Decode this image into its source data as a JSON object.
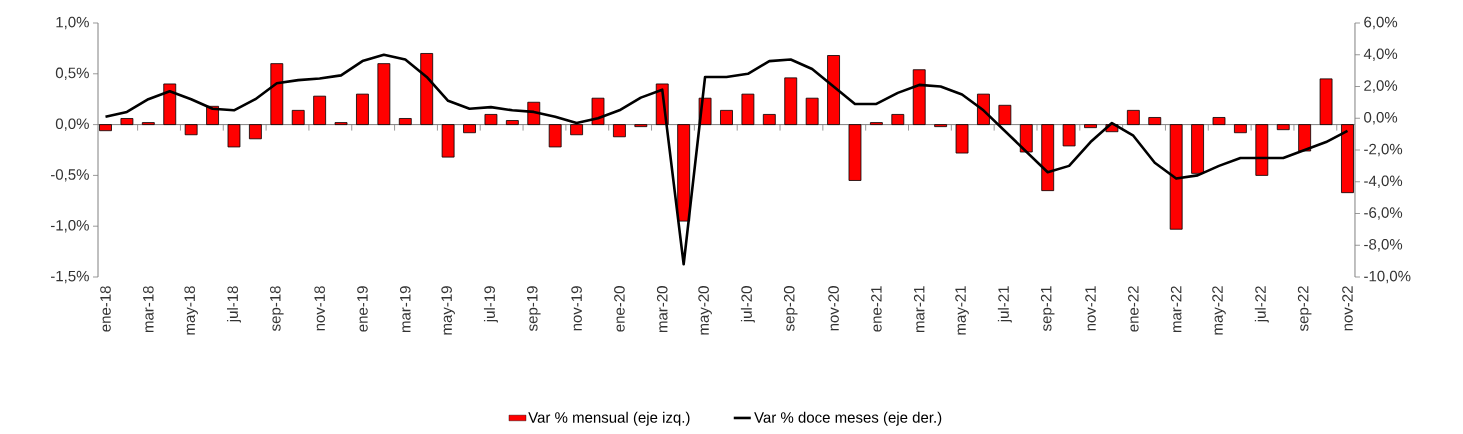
{
  "chart_data": {
    "type": "bar",
    "categories": [
      "ene-18",
      null,
      "mar-18",
      null,
      "may-18",
      null,
      "jul-18",
      null,
      "sep-18",
      null,
      "nov-18",
      null,
      "ene-19",
      null,
      "mar-19",
      null,
      "may-19",
      null,
      "jul-19",
      null,
      "sep-19",
      null,
      "nov-19",
      null,
      "ene-20",
      null,
      "mar-20",
      null,
      "may-20",
      null,
      "jul-20",
      null,
      "sep-20",
      null,
      "nov-20",
      null,
      "ene-21",
      null,
      "mar-21",
      null,
      "may-21",
      null,
      "jul-21",
      null,
      "sep-21",
      null,
      "nov-21",
      null,
      "ene-22",
      null,
      "mar-22",
      null,
      "may-22",
      null,
      "jul-22",
      null,
      "sep-22",
      null,
      "nov-22"
    ],
    "series": [
      {
        "name": "Var % mensual (eje izq.)",
        "color": "#ff0000",
        "values": [
          -0.06,
          0.06,
          0.02,
          0.4,
          -0.1,
          0.18,
          -0.22,
          -0.14,
          0.6,
          0.14,
          0.28,
          0.02,
          0.3,
          0.6,
          0.06,
          0.7,
          -0.32,
          -0.08,
          0.1,
          0.04,
          0.22,
          -0.22,
          -0.1,
          0.26,
          -0.12,
          -0.02,
          0.4,
          -0.95,
          0.26,
          0.14,
          0.3,
          0.1,
          0.46,
          0.26,
          0.68,
          -0.55,
          0.02,
          0.1,
          0.54,
          -0.02,
          -0.28,
          0.3,
          0.19,
          -0.27,
          -0.65,
          -0.21,
          -0.03,
          -0.07,
          0.14,
          0.07,
          -1.03,
          -0.48,
          0.07,
          -0.08,
          -0.5,
          -0.05,
          -0.26,
          0.45,
          -0.67
        ]
      },
      {
        "name": "Var % doce meses (eje der.)",
        "type": "line",
        "axis": "y2",
        "color": "#000000",
        "values": [
          0.1,
          0.4,
          1.2,
          1.7,
          1.2,
          0.6,
          0.5,
          1.2,
          2.2,
          2.4,
          2.5,
          2.7,
          3.6,
          4.0,
          3.7,
          2.6,
          1.1,
          0.6,
          0.7,
          0.5,
          0.4,
          0.1,
          -0.3,
          0.0,
          0.5,
          1.3,
          1.8,
          -9.2,
          2.6,
          2.6,
          2.8,
          3.6,
          3.7,
          3.1,
          2.0,
          0.9,
          0.9,
          1.6,
          2.1,
          2.0,
          1.5,
          0.5,
          -0.8,
          -2.1,
          -3.4,
          -3.0,
          -1.5,
          -0.3,
          -1.1,
          -2.8,
          -3.8,
          -3.6,
          -3.0,
          -2.5,
          -2.5,
          -2.5,
          -2.0,
          -1.5,
          -0.8
        ]
      }
    ],
    "ylim": [
      -1.5,
      1.0
    ],
    "yticks": [
      {
        "value": -1.5,
        "label": "-1,5%"
      },
      {
        "value": -1.0,
        "label": "-1,0%"
      },
      {
        "value": -0.5,
        "label": "-0,5%"
      },
      {
        "value": 0,
        "label": "0,0%"
      },
      {
        "value": 0.5,
        "label": "0,5%"
      },
      {
        "value": 1.0,
        "label": "1,0%"
      }
    ],
    "y2lim": [
      -10,
      6
    ],
    "y2ticks": [
      {
        "value": -10,
        "label": "-10,0%"
      },
      {
        "value": -8,
        "label": "-8,0%"
      },
      {
        "value": -6,
        "label": "-6,0%"
      },
      {
        "value": -4,
        "label": "-4,0%"
      },
      {
        "value": -2,
        "label": "-2,0%"
      },
      {
        "value": 0,
        "label": "0,0%"
      },
      {
        "value": 2,
        "label": "2,0%"
      },
      {
        "value": 4,
        "label": "4,0%"
      },
      {
        "value": 6,
        "label": "6,0%"
      }
    ],
    "legend": "bottom"
  }
}
